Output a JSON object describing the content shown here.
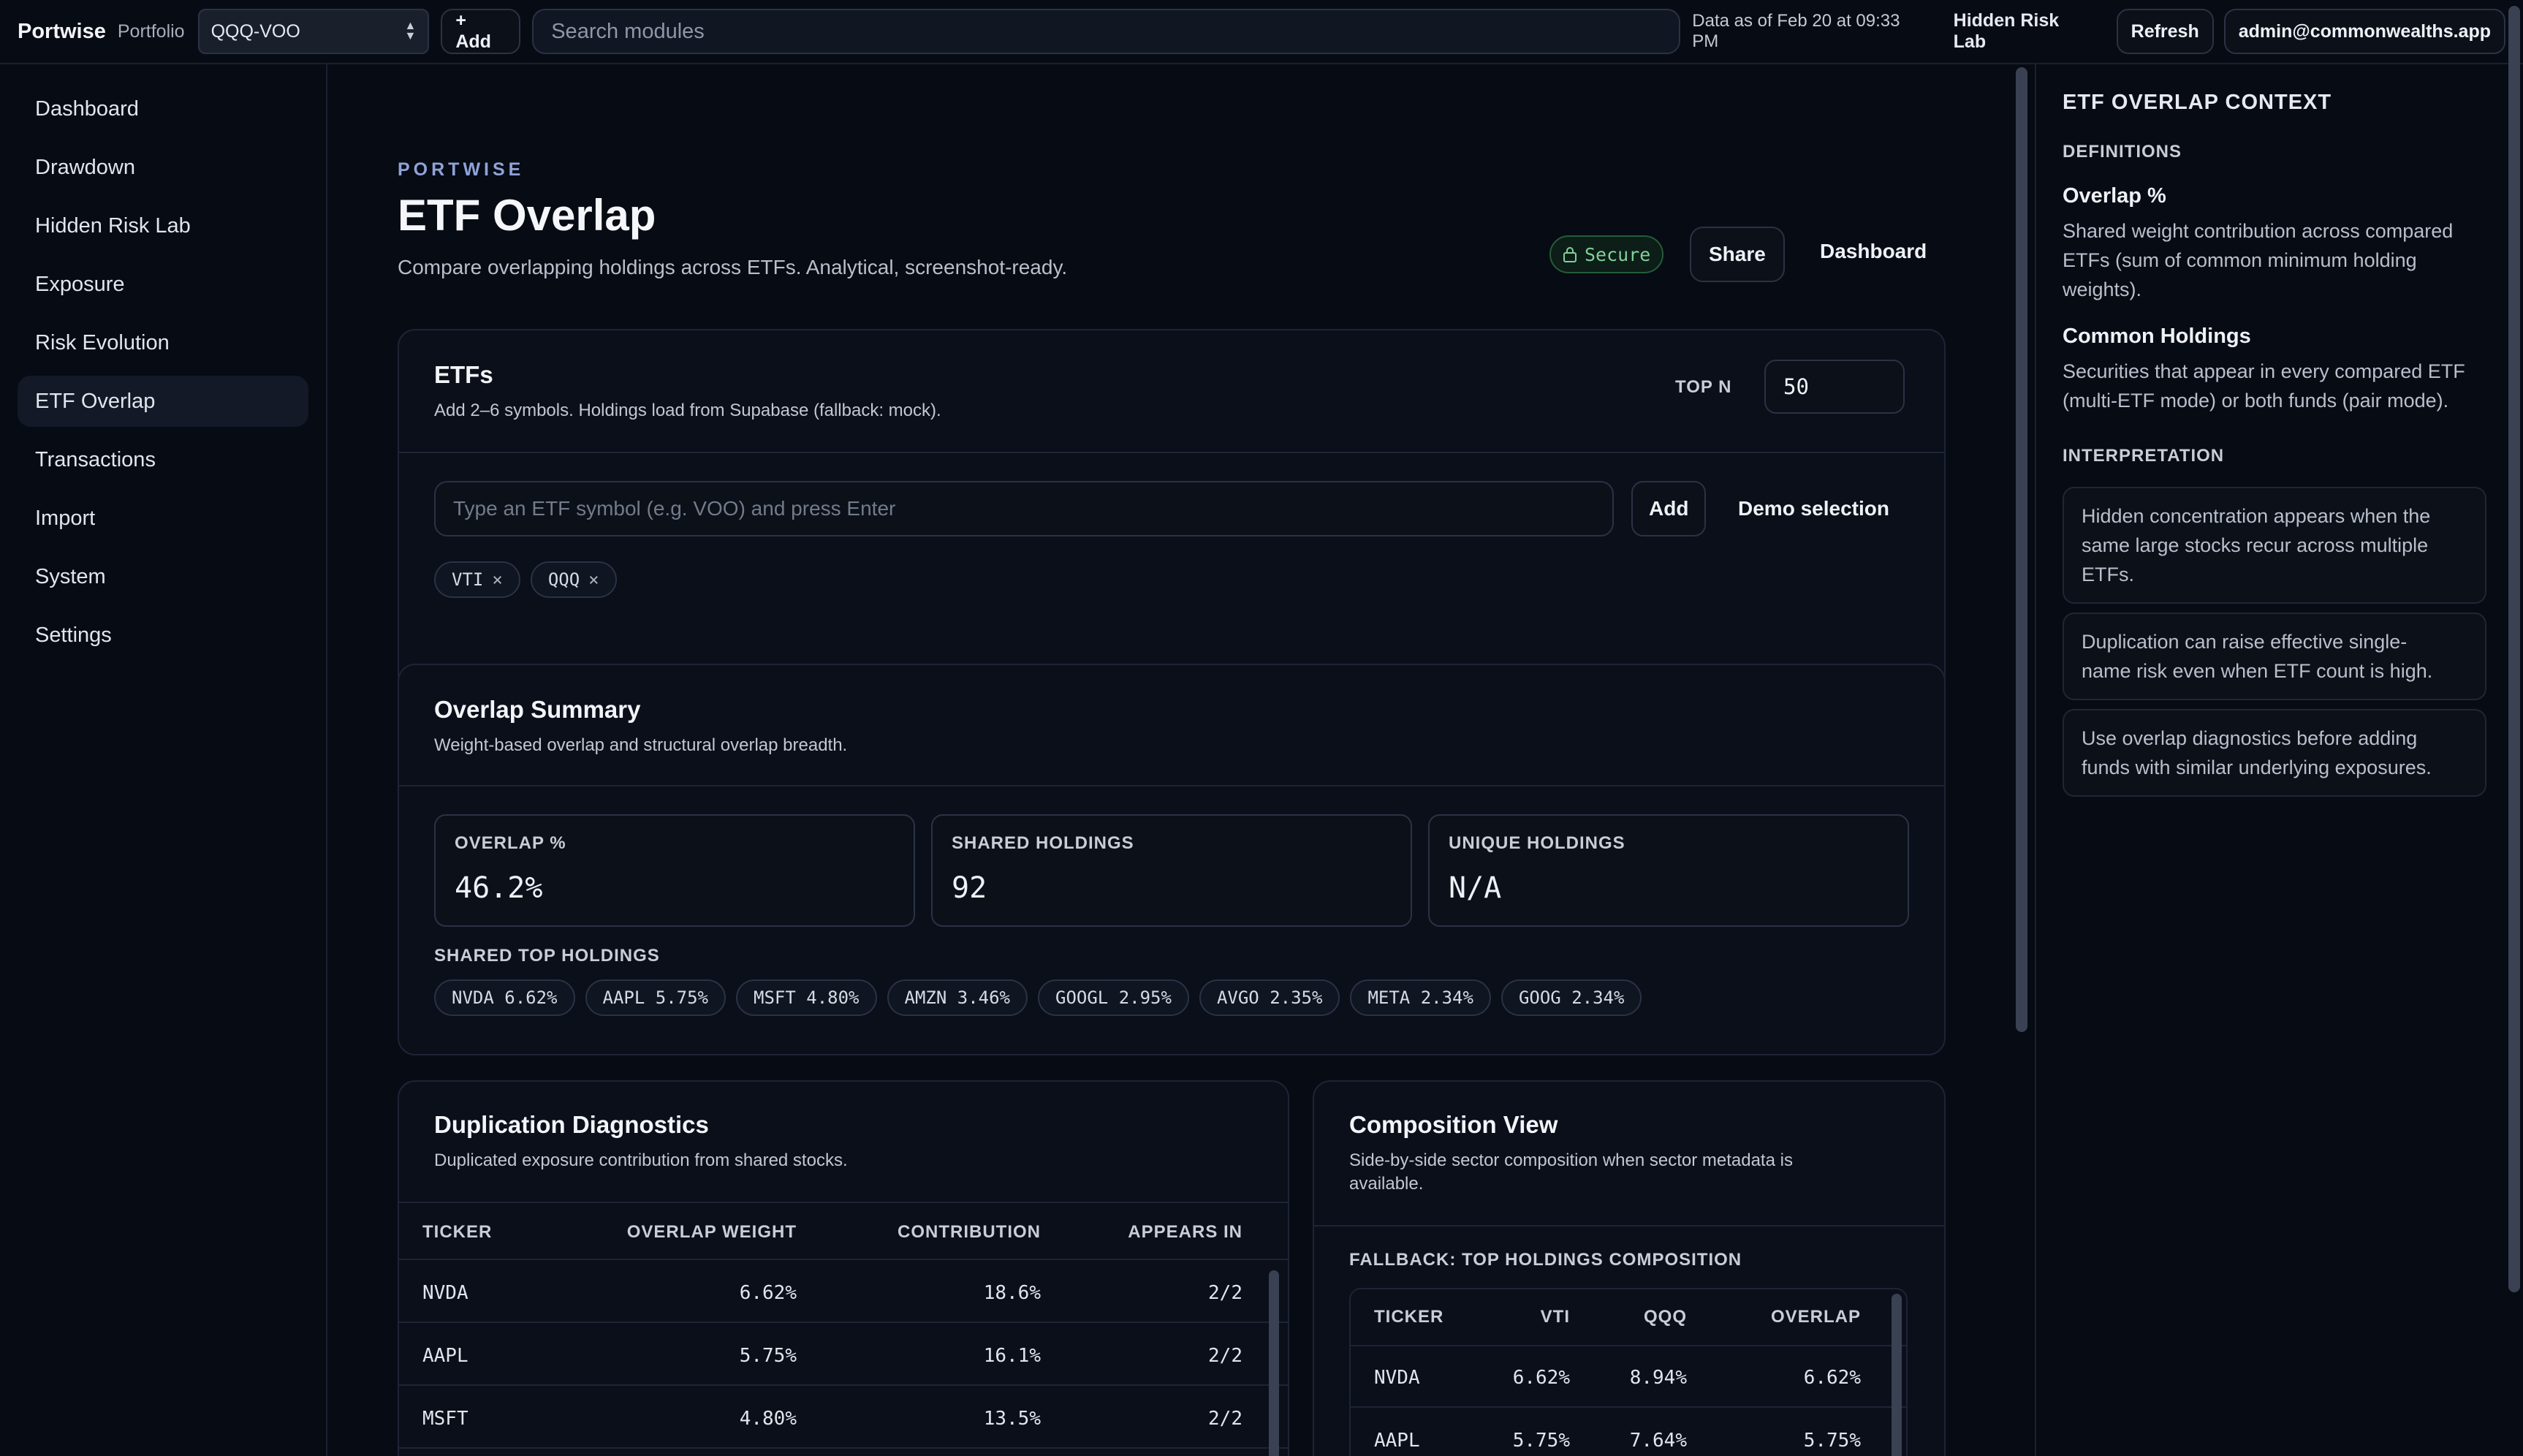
{
  "topbar": {
    "brand": "Portwise",
    "portfolio_label": "Portfolio",
    "portfolio_value": "QQQ-VOO",
    "add_label": "+ Add",
    "search_placeholder": "Search modules",
    "as_of": "Data as of Feb 20 at 09:33 PM",
    "hidden_risk_link": "Hidden Risk Lab",
    "refresh_label": "Refresh",
    "account": "admin@commonwealths.app"
  },
  "sidebar": {
    "items": [
      {
        "label": "Dashboard"
      },
      {
        "label": "Drawdown"
      },
      {
        "label": "Hidden Risk Lab"
      },
      {
        "label": "Exposure"
      },
      {
        "label": "Risk Evolution"
      },
      {
        "label": "ETF Overlap",
        "active": true
      },
      {
        "label": "Transactions"
      },
      {
        "label": "Import"
      },
      {
        "label": "System"
      },
      {
        "label": "Settings"
      }
    ]
  },
  "header": {
    "eyebrow": "PORTWISE",
    "title": "ETF Overlap",
    "description": "Compare overlapping holdings across ETFs. Analytical, screenshot-ready.",
    "secure_label": "Secure",
    "share_label": "Share",
    "dashboard_label": "Dashboard"
  },
  "etfs_card": {
    "title": "ETFs",
    "subtitle": "Add 2–6 symbols. Holdings load from Supabase (fallback: mock).",
    "topn_label": "TOP N",
    "topn_value": "50",
    "input_placeholder": "Type an ETF symbol (e.g. VOO) and press Enter",
    "add_label": "Add",
    "demo_label": "Demo selection",
    "chips": [
      {
        "symbol": "VTI",
        "remove": "×"
      },
      {
        "symbol": "QQQ",
        "remove": "×"
      }
    ]
  },
  "summary_card": {
    "title": "Overlap Summary",
    "subtitle": "Weight-based overlap and structural overlap breadth.",
    "metrics": [
      {
        "label": "OVERLAP %",
        "value": "46.2%"
      },
      {
        "label": "SHARED HOLDINGS",
        "value": "92"
      },
      {
        "label": "UNIQUE HOLDINGS",
        "value": "N/A"
      }
    ],
    "top_holdings_label": "SHARED TOP HOLDINGS",
    "top_holdings": [
      "NVDA 6.62%",
      "AAPL 5.75%",
      "MSFT 4.80%",
      "AMZN 3.46%",
      "GOOGL 2.95%",
      "AVGO 2.35%",
      "META 2.34%",
      "GOOG 2.34%"
    ]
  },
  "duplication_card": {
    "title": "Duplication Diagnostics",
    "subtitle": "Duplicated exposure contribution from shared stocks.",
    "columns": [
      "TICKER",
      "OVERLAP WEIGHT",
      "CONTRIBUTION",
      "APPEARS IN"
    ],
    "rows": [
      {
        "ticker": "NVDA",
        "weight": "6.62%",
        "contribution": "18.6%",
        "appears": "2/2"
      },
      {
        "ticker": "AAPL",
        "weight": "5.75%",
        "contribution": "16.1%",
        "appears": "2/2"
      },
      {
        "ticker": "MSFT",
        "weight": "4.80%",
        "contribution": "13.5%",
        "appears": "2/2"
      }
    ]
  },
  "composition_card": {
    "title": "Composition View",
    "subtitle_1": "Side-by-side sector composition when sector metadata is",
    "subtitle_2": "available.",
    "fallback_label": "FALLBACK: TOP HOLDINGS COMPOSITION",
    "columns": [
      "TICKER",
      "VTI",
      "QQQ",
      "OVERLAP"
    ],
    "rows": [
      {
        "ticker": "NVDA",
        "vti": "6.62%",
        "qqq": "8.94%",
        "overlap": "6.62%"
      },
      {
        "ticker": "AAPL",
        "vti": "5.75%",
        "qqq": "7.64%",
        "overlap": "5.75%"
      }
    ]
  },
  "context_panel": {
    "title": "ETF OVERLAP CONTEXT",
    "definitions_label": "DEFINITIONS",
    "overlap_term": "Overlap %",
    "overlap_def_1": "Shared weight contribution across compared",
    "overlap_def_2": "ETFs (sum of common minimum holding",
    "overlap_def_3": "weights).",
    "common_term": "Common Holdings",
    "common_def_1": "Securities that appear in every compared ETF",
    "common_def_2": "(multi-ETF mode) or both funds (pair mode).",
    "interpretation_label": "INTERPRETATION",
    "notes": [
      [
        "Hidden concentration appears when the",
        "same large stocks recur across multiple",
        "ETFs."
      ],
      [
        "Duplication can raise effective single-",
        "name risk even when ETF count is high."
      ],
      [
        "Use overlap diagnostics before adding",
        "funds with similar underlying exposures."
      ]
    ]
  }
}
